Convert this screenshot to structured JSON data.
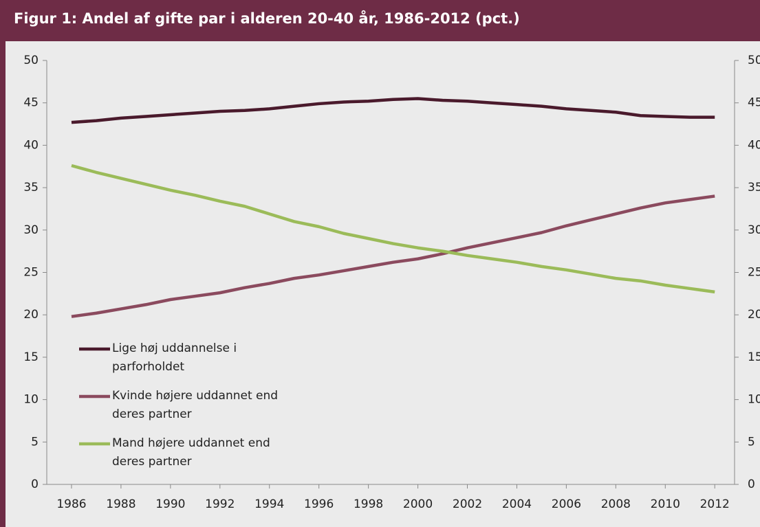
{
  "chart_data": {
    "type": "line",
    "title": "Figur 1: Andel af gifte par i alderen 20-40 år, 1986-2012 (pct.)",
    "x": [
      1986,
      1987,
      1988,
      1989,
      1990,
      1991,
      1992,
      1993,
      1994,
      1995,
      1996,
      1997,
      1998,
      1999,
      2000,
      2001,
      2002,
      2003,
      2004,
      2005,
      2006,
      2007,
      2008,
      2009,
      2010,
      2011,
      2012
    ],
    "series": [
      {
        "name": "Lige høj uddannelse i parforholdet",
        "color": "#4a1a2c",
        "values": [
          42.7,
          42.9,
          43.2,
          43.4,
          43.6,
          43.8,
          44.0,
          44.1,
          44.3,
          44.6,
          44.9,
          45.1,
          45.2,
          45.4,
          45.5,
          45.3,
          45.2,
          45.0,
          44.8,
          44.6,
          44.3,
          44.1,
          43.9,
          43.5,
          43.4,
          43.3,
          43.3
        ]
      },
      {
        "name": "Kvinde højere uddannet end deres partner",
        "color": "#8b4a5e",
        "values": [
          19.8,
          20.2,
          20.7,
          21.2,
          21.8,
          22.2,
          22.6,
          23.2,
          23.7,
          24.3,
          24.7,
          25.2,
          25.7,
          26.2,
          26.6,
          27.2,
          27.9,
          28.5,
          29.1,
          29.7,
          30.5,
          31.2,
          31.9,
          32.6,
          33.2,
          33.6,
          34.0
        ]
      },
      {
        "name": "Mand højere uddannet end deres partner",
        "color": "#9bbb59",
        "values": [
          37.6,
          36.8,
          36.1,
          35.4,
          34.7,
          34.1,
          33.4,
          32.8,
          31.9,
          31.0,
          30.4,
          29.6,
          29.0,
          28.4,
          27.9,
          27.5,
          27.0,
          26.6,
          26.2,
          25.7,
          25.3,
          24.8,
          24.3,
          24.0,
          23.5,
          23.1,
          22.7
        ]
      }
    ],
    "xlim": [
      1985,
      2012.8
    ],
    "xticks": [
      1986,
      1988,
      1990,
      1992,
      1994,
      1996,
      1998,
      2000,
      2002,
      2004,
      2006,
      2008,
      2010,
      2012
    ],
    "ylim": [
      0,
      50
    ],
    "yticks": [
      0,
      5,
      10,
      15,
      20,
      25,
      30,
      35,
      40,
      45,
      50
    ],
    "y2lim": [
      0,
      50
    ],
    "y2ticks": [
      0,
      5,
      10,
      15,
      20,
      25,
      30,
      35,
      40,
      45,
      50
    ],
    "legend": "left"
  }
}
